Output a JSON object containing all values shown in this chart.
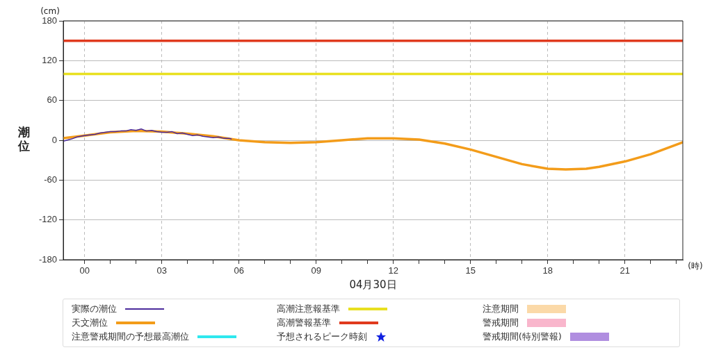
{
  "chart_data": {
    "type": "line",
    "ylabel": "潮位",
    "xlabel": "04月30日",
    "annotations": [
      "(cm)",
      "(時)"
    ],
    "xlim": [
      -0.83,
      23.25
    ],
    "ylim": [
      -180,
      180
    ],
    "xticks": [
      {
        "value": 0,
        "label": "00"
      },
      {
        "value": 1,
        "label": null
      },
      {
        "value": 2,
        "label": null
      },
      {
        "value": 3,
        "label": "03"
      },
      {
        "value": 4,
        "label": null
      },
      {
        "value": 5,
        "label": null
      },
      {
        "value": 6,
        "label": "06"
      },
      {
        "value": 7,
        "label": null
      },
      {
        "value": 8,
        "label": null
      },
      {
        "value": 9,
        "label": "09"
      },
      {
        "value": 10,
        "label": null
      },
      {
        "value": 11,
        "label": null
      },
      {
        "value": 12,
        "label": "12"
      },
      {
        "value": 13,
        "label": null
      },
      {
        "value": 14,
        "label": null
      },
      {
        "value": 15,
        "label": "15"
      },
      {
        "value": 16,
        "label": null
      },
      {
        "value": 17,
        "label": null
      },
      {
        "value": 18,
        "label": "18"
      },
      {
        "value": 19,
        "label": null
      },
      {
        "value": 20,
        "label": null
      },
      {
        "value": 21,
        "label": "21"
      },
      {
        "value": 22,
        "label": null
      },
      {
        "value": 23,
        "label": null
      }
    ],
    "yticks": [
      -180,
      -120,
      -60,
      0,
      60,
      120,
      180
    ],
    "grid": true,
    "legend": "bottom",
    "marker": "none",
    "line_style": "solid",
    "series": [
      {
        "name": "実際の潮位",
        "color": "#4b2a9b",
        "x": [
          -0.8,
          -0.5,
          -0.3,
          0,
          0.2,
          0.4,
          0.6,
          0.8,
          1,
          1.2,
          1.4,
          1.6,
          1.8,
          2,
          2.2,
          2.4,
          2.6,
          2.8,
          3,
          3.2,
          3.4,
          3.6,
          3.8,
          4,
          4.2,
          4.4,
          4.6,
          4.8,
          5,
          5.2,
          5.4,
          5.6,
          5.7
        ],
        "values": [
          -1,
          2,
          5,
          7,
          8,
          9,
          11,
          12,
          13,
          13,
          14,
          14,
          16,
          15,
          17,
          14,
          15,
          13,
          12,
          12,
          13,
          10,
          11,
          9,
          7,
          8,
          6,
          5,
          4,
          5,
          3,
          3,
          2
        ]
      },
      {
        "name": "高潮注意報基準",
        "color": "#e8e020",
        "x": [
          -0.83,
          23.25
        ],
        "values": [
          100,
          100
        ]
      },
      {
        "name": "注意期間",
        "type": "area",
        "color": "#fbd9a8"
      },
      {
        "name": "天文潮位",
        "color": "#f39c1a",
        "x": [
          -0.83,
          0,
          1,
          2,
          3,
          4,
          5,
          6,
          7,
          8,
          9,
          10,
          11,
          12,
          13,
          14,
          15,
          16,
          17,
          18,
          18.7,
          19.5,
          20,
          21,
          22,
          23.25
        ],
        "values": [
          3,
          7,
          12,
          14,
          13,
          10,
          6,
          0,
          -3,
          -4,
          -3,
          0,
          3,
          3,
          1,
          -5,
          -14,
          -25,
          -36,
          -43,
          -44,
          -43,
          -40,
          -32,
          -21,
          -3
        ]
      },
      {
        "name": "高潮警報基準",
        "color": "#e03a1e",
        "x": [
          -0.83,
          23.25
        ],
        "values": [
          150,
          150
        ]
      },
      {
        "name": "警戒期間",
        "type": "area",
        "color": "#f9b6cc"
      },
      {
        "name": "注意警戒期間の予想最高潮位",
        "color": "#2ee8ee"
      },
      {
        "name": "予想されるピーク時刻",
        "type": "scatter",
        "marker": "star",
        "color": "#1020e0"
      },
      {
        "name": "警戒期間(特別警報)",
        "type": "area",
        "color": "#b08ee0"
      }
    ]
  }
}
